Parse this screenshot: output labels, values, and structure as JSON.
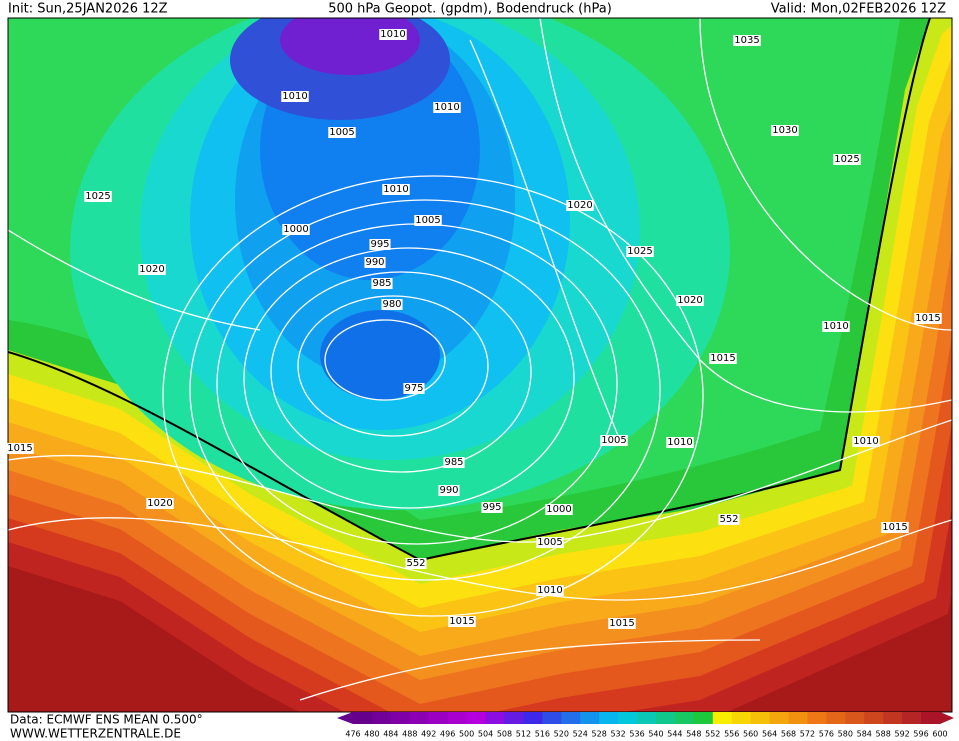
{
  "header": {
    "init": "Init: Sun,25JAN2026 12Z",
    "title": "500 hPa Geopot. (gpdm), Bodendruck (hPa)",
    "valid": "Valid: Mon,02FEB2026 12Z"
  },
  "isobar_labels": [
    "1010",
    "1035",
    "1010",
    "1010",
    "1030",
    "1005",
    "1025",
    "1010",
    "1020",
    "1025",
    "1005",
    "1000",
    "995",
    "1025",
    "990",
    "1020",
    "985",
    "1020",
    "980",
    "1010",
    "1015",
    "1015",
    "975",
    "1005",
    "1010",
    "1010",
    "1015",
    "985",
    "990",
    "1020",
    "995",
    "1000",
    "552",
    "1015",
    "1005",
    "552",
    "1010",
    "1015",
    "1015"
  ],
  "colorbar": {
    "labels": [
      476,
      480,
      484,
      488,
      492,
      496,
      500,
      504,
      508,
      512,
      516,
      520,
      524,
      528,
      532,
      536,
      540,
      544,
      548,
      552,
      556,
      560,
      564,
      568,
      572,
      576,
      580,
      584,
      588,
      592,
      596,
      600
    ]
  },
  "footer": {
    "data": "Data: ECMWF ENS MEAN 0.500°",
    "site": "WWW.WETTERZENTRALE.DE"
  }
}
